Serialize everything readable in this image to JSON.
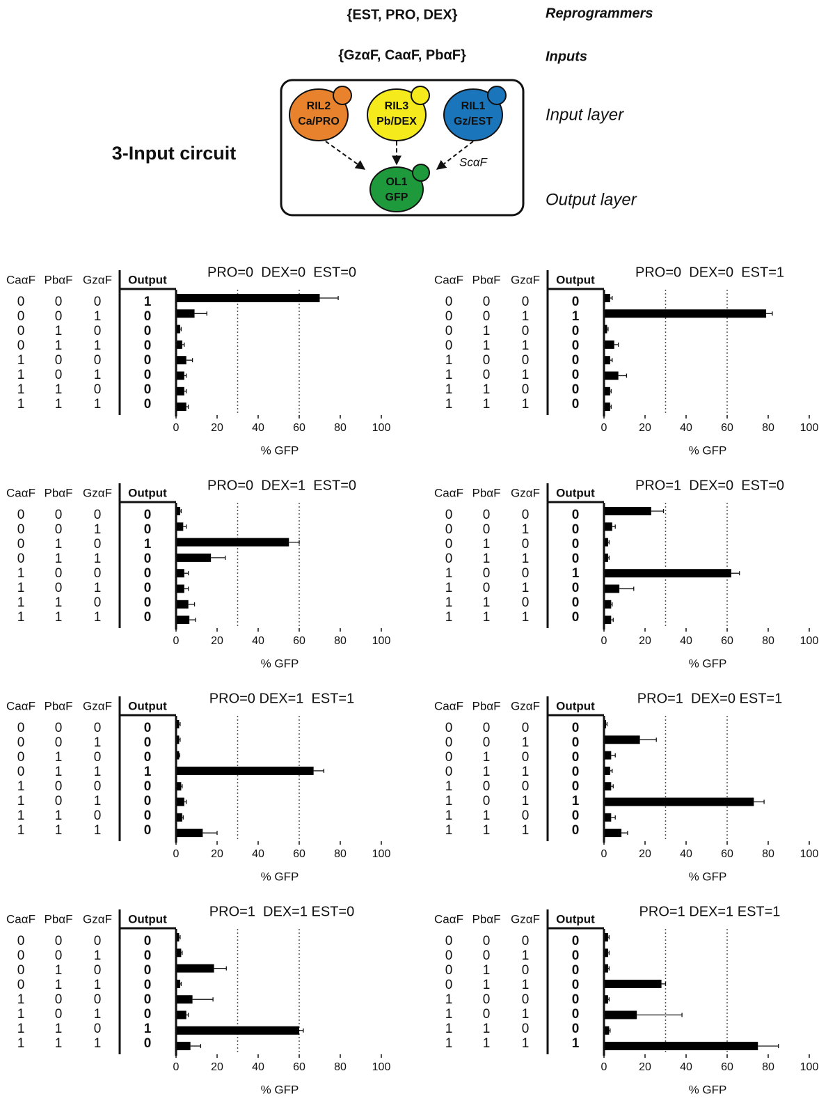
{
  "header": {
    "reprogrammers_set": "{EST, PRO, DEX}",
    "reprogrammers_label": "Reprogrammers",
    "inputs_set": "{GzαF, CaαF, PbαF}",
    "inputs_label": "Inputs",
    "input_layer": "Input layer",
    "output_layer": "Output layer",
    "circuit_title": "3-Input circuit",
    "edge_label": "ScαF",
    "nodes": [
      {
        "name": "RIL2",
        "detail": "Ca/PRO"
      },
      {
        "name": "RIL3",
        "detail": "Pb/DEX"
      },
      {
        "name": "RIL1",
        "detail": "Gz/EST"
      },
      {
        "name": "OL1",
        "detail": "GFP"
      }
    ]
  },
  "chart_data": [
    {
      "type": "bar",
      "title": "PRO=0  DEX=0  EST=0",
      "table_columns": [
        "CaαF",
        "PbαF",
        "GzαF",
        "Output"
      ],
      "inputs": [
        [
          0,
          0,
          0
        ],
        [
          0,
          0,
          1
        ],
        [
          0,
          1,
          0
        ],
        [
          0,
          1,
          1
        ],
        [
          1,
          0,
          0
        ],
        [
          1,
          0,
          1
        ],
        [
          1,
          1,
          0
        ],
        [
          1,
          1,
          1
        ]
      ],
      "outputs": [
        1,
        0,
        0,
        0,
        0,
        0,
        0,
        0
      ],
      "values": [
        70,
        9,
        2,
        3,
        5,
        4,
        4,
        5
      ],
      "errors": [
        9,
        6,
        0.5,
        1,
        3,
        1,
        1,
        1
      ],
      "color": "#000000",
      "xlim": [
        0,
        100
      ],
      "xticks": [
        0,
        20,
        40,
        60,
        80,
        100
      ],
      "ref_lines": [
        30,
        60
      ],
      "xlabel": "% GFP"
    },
    {
      "type": "bar",
      "title": "PRO=0  DEX=0  EST=1",
      "table_columns": [
        "CaαF",
        "PbαF",
        "GzαF",
        "Output"
      ],
      "inputs": [
        [
          0,
          0,
          0
        ],
        [
          0,
          0,
          1
        ],
        [
          0,
          1,
          0
        ],
        [
          0,
          1,
          1
        ],
        [
          1,
          0,
          0
        ],
        [
          1,
          0,
          1
        ],
        [
          1,
          1,
          0
        ],
        [
          1,
          1,
          1
        ]
      ],
      "outputs": [
        0,
        1,
        0,
        0,
        0,
        0,
        0,
        0
      ],
      "values": [
        3,
        79,
        1.5,
        5,
        3,
        7,
        3,
        3
      ],
      "errors": [
        1,
        3,
        0.5,
        2,
        1,
        4,
        0.5,
        0.5
      ],
      "color": "#000000",
      "xlim": [
        0,
        100
      ],
      "xticks": [
        0,
        20,
        40,
        60,
        80,
        100
      ],
      "ref_lines": [
        30,
        60
      ],
      "xlabel": "% GFP"
    },
    {
      "type": "bar",
      "title": "PRO=0  DEX=1  EST=0",
      "table_columns": [
        "CaαF",
        "PbαF",
        "GzαF",
        "Output"
      ],
      "inputs": [
        [
          0,
          0,
          0
        ],
        [
          0,
          0,
          1
        ],
        [
          0,
          1,
          0
        ],
        [
          0,
          1,
          1
        ],
        [
          1,
          0,
          0
        ],
        [
          1,
          0,
          1
        ],
        [
          1,
          1,
          0
        ],
        [
          1,
          1,
          1
        ]
      ],
      "outputs": [
        0,
        0,
        1,
        0,
        0,
        0,
        0,
        0
      ],
      "values": [
        2,
        3.5,
        55,
        17,
        4,
        4,
        6,
        6.5
      ],
      "errors": [
        0.5,
        1.5,
        5,
        7,
        2,
        2,
        3,
        3
      ],
      "color": "#000000",
      "xlim": [
        0,
        100
      ],
      "xticks": [
        0,
        20,
        40,
        60,
        80,
        100
      ],
      "ref_lines": [
        30,
        60
      ],
      "xlabel": "% GFP"
    },
    {
      "type": "bar",
      "title": "PRO=1  DEX=0  EST=0",
      "table_columns": [
        "CaαF",
        "PbαF",
        "GzαF",
        "Output"
      ],
      "inputs": [
        [
          0,
          0,
          0
        ],
        [
          0,
          0,
          1
        ],
        [
          0,
          1,
          0
        ],
        [
          0,
          1,
          1
        ],
        [
          1,
          0,
          0
        ],
        [
          1,
          0,
          1
        ],
        [
          1,
          1,
          0
        ],
        [
          1,
          1,
          1
        ]
      ],
      "outputs": [
        0,
        0,
        0,
        0,
        1,
        0,
        0,
        0
      ],
      "values": [
        23,
        4,
        2,
        2,
        62,
        7.5,
        3.5,
        3.5
      ],
      "errors": [
        6,
        1.5,
        0.5,
        0.5,
        4,
        7,
        0.5,
        1
      ],
      "color": "#000000",
      "xlim": [
        0,
        100
      ],
      "xticks": [
        0,
        20,
        40,
        60,
        80,
        100
      ],
      "ref_lines": [
        30,
        60
      ],
      "xlabel": "% GFP"
    },
    {
      "type": "bar",
      "title": "PRO=0 DEX=1  EST=1",
      "table_columns": [
        "CaαF",
        "PbαF",
        "GzαF",
        "Output"
      ],
      "inputs": [
        [
          0,
          0,
          0
        ],
        [
          0,
          0,
          1
        ],
        [
          0,
          1,
          0
        ],
        [
          0,
          1,
          1
        ],
        [
          1,
          0,
          0
        ],
        [
          1,
          0,
          1
        ],
        [
          1,
          1,
          0
        ],
        [
          1,
          1,
          1
        ]
      ],
      "outputs": [
        0,
        0,
        0,
        1,
        0,
        0,
        0,
        0
      ],
      "values": [
        1.5,
        1.5,
        1.5,
        67,
        2.5,
        4,
        3,
        13
      ],
      "errors": [
        0.5,
        0.5,
        0.3,
        5,
        0.5,
        1,
        0.5,
        7
      ],
      "color": "#000000",
      "xlim": [
        0,
        100
      ],
      "xticks": [
        0,
        20,
        40,
        60,
        80,
        100
      ],
      "ref_lines": [
        30,
        60
      ],
      "xlabel": "% GFP"
    },
    {
      "type": "bar",
      "title": "PRO=1  DEX=0 EST=1",
      "table_columns": [
        "CaαF",
        "PbαF",
        "GzαF",
        "Output"
      ],
      "inputs": [
        [
          0,
          0,
          0
        ],
        [
          0,
          0,
          1
        ],
        [
          0,
          1,
          0
        ],
        [
          0,
          1,
          1
        ],
        [
          1,
          0,
          0
        ],
        [
          1,
          0,
          1
        ],
        [
          1,
          1,
          0
        ],
        [
          1,
          1,
          1
        ]
      ],
      "outputs": [
        0,
        0,
        0,
        0,
        0,
        1,
        0,
        0
      ],
      "values": [
        1,
        17.5,
        3.5,
        3,
        3.5,
        73,
        3.5,
        8.5
      ],
      "errors": [
        0.5,
        8,
        2,
        1,
        1,
        5,
        2,
        3
      ],
      "color": "#000000",
      "xlim": [
        0,
        100
      ],
      "xticks": [
        0,
        20,
        40,
        60,
        80,
        100
      ],
      "ref_lines": [
        30,
        60
      ],
      "xlabel": "% GFP"
    },
    {
      "type": "bar",
      "title": "PRO=1  DEX=1 EST=0",
      "table_columns": [
        "CaαF",
        "PbαF",
        "GzαF",
        "Output"
      ],
      "inputs": [
        [
          0,
          0,
          0
        ],
        [
          0,
          0,
          1
        ],
        [
          0,
          1,
          0
        ],
        [
          0,
          1,
          1
        ],
        [
          1,
          0,
          0
        ],
        [
          1,
          0,
          1
        ],
        [
          1,
          1,
          0
        ],
        [
          1,
          1,
          1
        ]
      ],
      "outputs": [
        0,
        0,
        0,
        0,
        0,
        0,
        1,
        0
      ],
      "values": [
        1.5,
        2.5,
        18.5,
        2,
        8,
        5,
        60,
        7
      ],
      "errors": [
        0.5,
        0.5,
        6,
        0.5,
        10,
        1,
        2,
        5
      ],
      "color": "#000000",
      "xlim": [
        0,
        100
      ],
      "xticks": [
        0,
        20,
        40,
        60,
        80,
        100
      ],
      "ref_lines": [
        30,
        60
      ],
      "xlabel": "% GFP"
    },
    {
      "type": "bar",
      "title": "PRO=1 DEX=1 EST=1",
      "table_columns": [
        "CaαF",
        "PbαF",
        "GzαF",
        "Output"
      ],
      "inputs": [
        [
          0,
          0,
          0
        ],
        [
          0,
          0,
          1
        ],
        [
          0,
          1,
          0
        ],
        [
          0,
          1,
          1
        ],
        [
          1,
          0,
          0
        ],
        [
          1,
          0,
          1
        ],
        [
          1,
          1,
          0
        ],
        [
          1,
          1,
          1
        ]
      ],
      "outputs": [
        0,
        0,
        0,
        0,
        0,
        0,
        0,
        1
      ],
      "values": [
        2,
        2,
        2,
        28,
        2,
        16,
        2.5,
        75
      ],
      "errors": [
        0.5,
        0.5,
        0.5,
        2,
        0.5,
        22,
        0.5,
        10
      ],
      "color": "#000000",
      "xlim": [
        0,
        100
      ],
      "xticks": [
        0,
        20,
        40,
        60,
        80,
        100
      ],
      "ref_lines": [
        30,
        60
      ],
      "xlabel": "% GFP"
    }
  ]
}
